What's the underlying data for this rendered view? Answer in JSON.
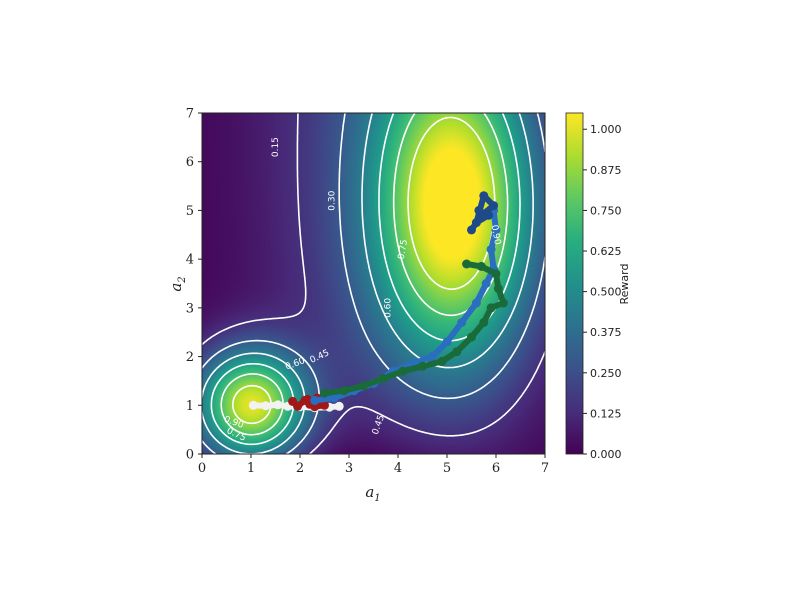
{
  "chart_data": {
    "type": "heatmap",
    "title": "",
    "xlabel_main": "a",
    "xlabel_sub": "1",
    "ylabel_main": "a",
    "ylabel_sub": "2",
    "xlim": [
      0,
      7
    ],
    "ylim": [
      0,
      7
    ],
    "x_ticks": [
      0,
      1,
      2,
      3,
      4,
      5,
      6,
      7
    ],
    "y_ticks": [
      0,
      1,
      2,
      3,
      4,
      5,
      6,
      7
    ],
    "colormap": "viridis",
    "colorbar": {
      "label": "Reward",
      "range": [
        0.0,
        1.05
      ],
      "ticks": [
        "0.000",
        "0.125",
        "0.250",
        "0.375",
        "0.500",
        "0.625",
        "0.750",
        "0.875",
        "1.000"
      ],
      "tick_values": [
        0.0,
        0.125,
        0.25,
        0.375,
        0.5,
        0.625,
        0.75,
        0.875,
        1.0
      ]
    },
    "reward_peaks": [
      {
        "center": [
          1.0,
          1.0
        ],
        "height": 0.98
      },
      {
        "center": [
          5.2,
          5.1
        ],
        "height": 1.03
      }
    ],
    "contour_levels": [
      0.15,
      0.3,
      0.45,
      0.6,
      0.75,
      0.9
    ],
    "contour_labels": [
      {
        "text": "0.15",
        "at": [
          1.5,
          6.3
        ],
        "rotation": -90
      },
      {
        "text": "0.30",
        "at": [
          2.65,
          5.2
        ],
        "rotation": -90
      },
      {
        "text": "0.45",
        "at": [
          2.4,
          2.0
        ],
        "rotation": -25
      },
      {
        "text": "0.60",
        "at": [
          1.9,
          1.85
        ],
        "rotation": -20
      },
      {
        "text": "0.75",
        "at": [
          0.7,
          0.4
        ],
        "rotation": 25
      },
      {
        "text": "0.90",
        "at": [
          0.65,
          0.65
        ],
        "rotation": 20
      },
      {
        "text": "0.60",
        "at": [
          3.8,
          3.0
        ],
        "rotation": -90
      },
      {
        "text": "0.75",
        "at": [
          4.1,
          4.2
        ],
        "rotation": -80
      },
      {
        "text": "0.90",
        "at": [
          6.0,
          4.5
        ],
        "rotation": 80
      },
      {
        "text": "0.45",
        "at": [
          3.6,
          0.6
        ],
        "rotation": -70
      }
    ],
    "series": [
      {
        "color": "#f2f2f2",
        "points": [
          [
            1.05,
            1.0
          ],
          [
            1.3,
            0.99
          ],
          [
            1.55,
            1.01
          ],
          [
            1.75,
            0.98
          ],
          [
            2.0,
            0.97
          ],
          [
            2.3,
            0.95
          ],
          [
            2.6,
            0.96
          ],
          [
            2.8,
            0.98
          ]
        ]
      },
      {
        "color": "#a01818",
        "points": [
          [
            1.85,
            1.08
          ],
          [
            1.95,
            0.98
          ],
          [
            2.1,
            1.1
          ],
          [
            2.2,
            1.02
          ],
          [
            2.35,
            1.15
          ],
          [
            2.4,
            1.05
          ],
          [
            2.5,
            1.0
          ],
          [
            2.3,
            0.97
          ],
          [
            2.15,
            1.12
          ]
        ]
      },
      {
        "color": "#2a6ebf",
        "points": [
          [
            2.3,
            1.1
          ],
          [
            2.7,
            1.15
          ],
          [
            3.1,
            1.3
          ],
          [
            3.5,
            1.45
          ],
          [
            3.9,
            1.7
          ],
          [
            4.3,
            1.85
          ],
          [
            4.7,
            2.0
          ],
          [
            5.0,
            2.3
          ],
          [
            5.3,
            2.7
          ],
          [
            5.6,
            3.1
          ],
          [
            5.8,
            3.5
          ],
          [
            5.95,
            3.8
          ],
          [
            5.9,
            4.2
          ],
          [
            6.0,
            4.6
          ],
          [
            5.95,
            5.0
          ]
        ]
      },
      {
        "color": "#1a6b3a",
        "points": [
          [
            2.5,
            1.25
          ],
          [
            2.9,
            1.3
          ],
          [
            3.3,
            1.4
          ],
          [
            3.7,
            1.55
          ],
          [
            4.1,
            1.7
          ],
          [
            4.5,
            1.8
          ],
          [
            4.9,
            1.9
          ],
          [
            5.2,
            2.1
          ],
          [
            5.5,
            2.4
          ],
          [
            5.75,
            2.7
          ],
          [
            5.9,
            3.0
          ],
          [
            6.15,
            3.1
          ],
          [
            6.05,
            3.4
          ],
          [
            6.0,
            3.7
          ],
          [
            5.7,
            3.85
          ],
          [
            5.4,
            3.9
          ]
        ]
      },
      {
        "color": "#1f4a8a",
        "points": [
          [
            5.5,
            4.6
          ],
          [
            5.7,
            4.9
          ],
          [
            5.95,
            5.1
          ],
          [
            5.75,
            5.3
          ],
          [
            5.6,
            4.75
          ],
          [
            5.85,
            4.9
          ],
          [
            5.65,
            5.0
          ]
        ]
      }
    ]
  }
}
